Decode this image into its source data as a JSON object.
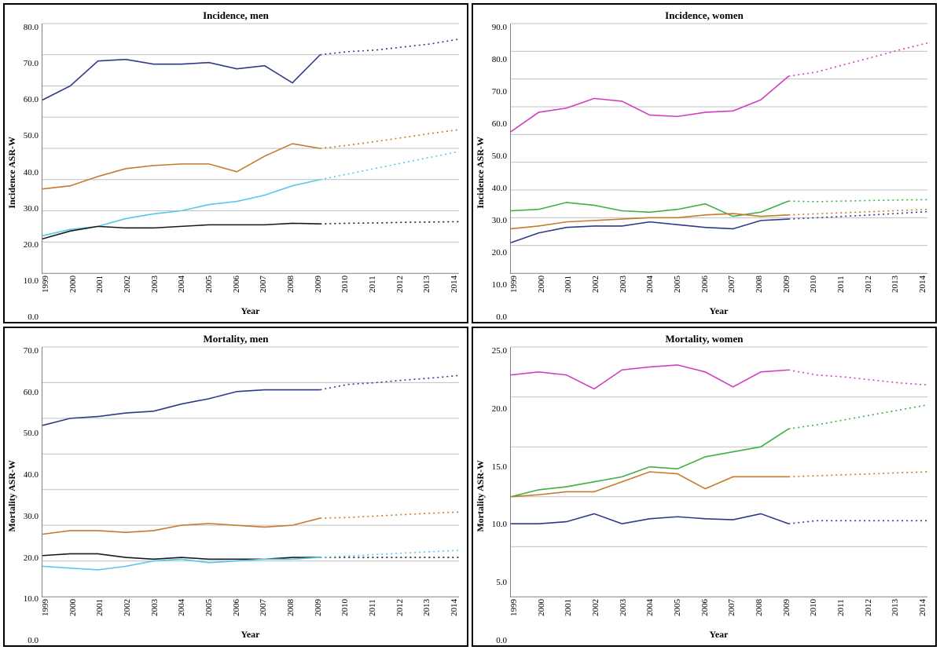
{
  "global": {
    "x_years": [
      1999,
      2000,
      2001,
      2002,
      2003,
      2004,
      2005,
      2006,
      2007,
      2008,
      2009,
      2010,
      2011,
      2012,
      2013,
      2014
    ],
    "solid_last_index": 10,
    "grid_color": "#c0c0c0",
    "axis_color": "#808080",
    "background_color": "#ffffff",
    "line_width": 1.6,
    "title_fontsize": 13,
    "label_fontsize": 12,
    "tick_fontsize": 11,
    "font_family": "Times New Roman"
  },
  "panels": [
    {
      "title": "Incidence, men",
      "x_label": "Year",
      "y_label": "Incidence ASR-W",
      "y_min": 0.0,
      "y_max": 80.0,
      "y_tick_step": 10.0,
      "series": [
        {
          "name": "series-a",
          "color": "#2e3a87",
          "values": [
            55.5,
            60.0,
            68.0,
            68.5,
            67.0,
            67.0,
            67.5,
            65.5,
            66.5,
            61.0,
            70.0,
            71.0,
            71.5,
            72.5,
            73.5,
            75.0
          ]
        },
        {
          "name": "series-b",
          "color": "#c67a2c",
          "values": [
            27.0,
            28.0,
            31.0,
            33.5,
            34.5,
            35.0,
            35.0,
            32.5,
            37.5,
            41.5,
            40.0,
            41.0,
            42.2,
            43.5,
            44.8,
            46.0
          ]
        },
        {
          "name": "series-c",
          "color": "#58c8e8",
          "values": [
            12.0,
            14.0,
            15.0,
            17.5,
            19.0,
            20.0,
            22.0,
            23.0,
            25.0,
            28.0,
            30.0,
            31.8,
            33.6,
            35.4,
            37.2,
            39.0
          ]
        },
        {
          "name": "series-d",
          "color": "#1a1a1a",
          "values": [
            11.0,
            13.5,
            15.0,
            14.5,
            14.5,
            15.0,
            15.5,
            15.5,
            15.5,
            16.0,
            15.8,
            16.0,
            16.1,
            16.3,
            16.4,
            16.5
          ]
        }
      ]
    },
    {
      "title": "Incidence, women",
      "x_label": "Year",
      "y_label": "Incidence ASR-W",
      "y_min": 0.0,
      "y_max": 90.0,
      "y_tick_step": 10.0,
      "series": [
        {
          "name": "series-m",
          "color": "#d23fbd",
          "values": [
            51.0,
            58.0,
            59.5,
            63.0,
            62.0,
            57.0,
            56.5,
            58.0,
            58.5,
            62.5,
            71.0,
            72.5,
            75.2,
            77.8,
            80.5,
            83.0
          ]
        },
        {
          "name": "series-g",
          "color": "#3cb043",
          "values": [
            22.5,
            23.0,
            25.5,
            24.5,
            22.5,
            22.0,
            23.0,
            25.0,
            20.5,
            22.0,
            26.0,
            25.8,
            26.0,
            26.2,
            26.4,
            26.5
          ]
        },
        {
          "name": "series-o",
          "color": "#c67a2c",
          "values": [
            16.0,
            17.0,
            18.5,
            19.0,
            19.5,
            20.0,
            20.0,
            21.0,
            21.5,
            20.5,
            21.0,
            21.4,
            21.8,
            22.2,
            22.6,
            23.0
          ]
        },
        {
          "name": "series-b",
          "color": "#2e3a87",
          "values": [
            11.0,
            14.5,
            16.5,
            17.0,
            17.0,
            18.5,
            17.5,
            16.5,
            16.0,
            19.0,
            19.5,
            20.0,
            20.5,
            21.0,
            21.6,
            22.2
          ]
        }
      ]
    },
    {
      "title": "Mortality, men",
      "x_label": "Year",
      "y_label": "Mortality ASR-W",
      "y_min": 0.0,
      "y_max": 70.0,
      "y_tick_step": 10.0,
      "series": [
        {
          "name": "series-a",
          "color": "#2e3a87",
          "values": [
            48.0,
            50.0,
            50.5,
            51.5,
            52.0,
            54.0,
            55.5,
            57.5,
            58.0,
            58.0,
            58.0,
            59.5,
            60.0,
            60.7,
            61.3,
            62.0
          ]
        },
        {
          "name": "series-b",
          "color": "#c67a2c",
          "values": [
            17.5,
            18.5,
            18.5,
            18.0,
            18.5,
            20.0,
            20.5,
            20.0,
            19.5,
            20.0,
            22.0,
            22.2,
            22.6,
            23.0,
            23.4,
            23.7
          ]
        },
        {
          "name": "series-d",
          "color": "#1a1a1a",
          "values": [
            11.5,
            12.0,
            12.0,
            11.0,
            10.5,
            11.0,
            10.5,
            10.5,
            10.5,
            11.0,
            11.0,
            11.0,
            11.0,
            11.0,
            11.0,
            11.0
          ]
        },
        {
          "name": "series-c",
          "color": "#58c8e8",
          "values": [
            8.5,
            8.0,
            7.5,
            8.5,
            10.0,
            10.5,
            9.5,
            10.0,
            10.5,
            10.5,
            11.0,
            11.4,
            11.8,
            12.2,
            12.6,
            13.0
          ]
        }
      ]
    },
    {
      "title": "Mortality, women",
      "x_label": "Year",
      "y_label": "Mortality ASR-W",
      "y_min": 0.0,
      "y_max": 25.0,
      "y_tick_step": 5.0,
      "series": [
        {
          "name": "series-m",
          "color": "#d23fbd",
          "values": [
            22.2,
            22.5,
            22.2,
            20.8,
            22.7,
            23.0,
            23.2,
            22.5,
            21.0,
            22.5,
            22.7,
            22.2,
            22.0,
            21.7,
            21.4,
            21.2
          ]
        },
        {
          "name": "series-g",
          "color": "#3cb043",
          "values": [
            10.0,
            10.7,
            11.0,
            11.5,
            12.0,
            13.0,
            12.8,
            14.0,
            14.5,
            15.0,
            16.8,
            17.2,
            17.7,
            18.2,
            18.7,
            19.2
          ]
        },
        {
          "name": "series-o",
          "color": "#c67a2c",
          "values": [
            10.0,
            10.2,
            10.5,
            10.5,
            11.5,
            12.5,
            12.3,
            10.8,
            12.0,
            12.0,
            12.0,
            12.1,
            12.2,
            12.3,
            12.4,
            12.5
          ]
        },
        {
          "name": "series-b",
          "color": "#2e3a87",
          "values": [
            7.3,
            7.3,
            7.5,
            8.3,
            7.3,
            7.8,
            8.0,
            7.8,
            7.7,
            8.3,
            7.3,
            7.6,
            7.6,
            7.6,
            7.6,
            7.6
          ]
        }
      ]
    }
  ]
}
